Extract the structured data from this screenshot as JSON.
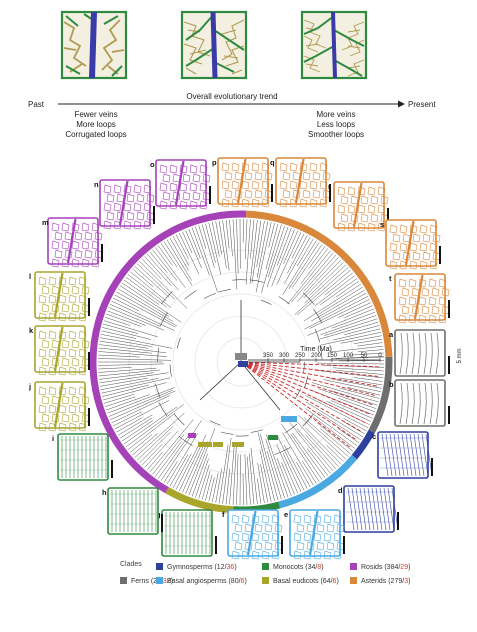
{
  "trend": {
    "past_label": "Past",
    "present_label": "Present",
    "overall_label": "Overall evolutionary trend",
    "past_traits": [
      "Fewer veins",
      "More loops",
      "Corrugated loops"
    ],
    "present_traits": [
      "More veins",
      "Less loops",
      "Smoother loops"
    ]
  },
  "time_axis": {
    "title": "Time (Ma)",
    "ticks": [
      "350",
      "300",
      "250",
      "200",
      "150",
      "100",
      "50",
      "0"
    ]
  },
  "scale_bar_label": "5 mm",
  "panels": [
    {
      "letter": "a",
      "clade": "ferns"
    },
    {
      "letter": "b",
      "clade": "ferns"
    },
    {
      "letter": "c",
      "clade": "gymnosperms"
    },
    {
      "letter": "d",
      "clade": "gymnosperms"
    },
    {
      "letter": "e",
      "clade": "basal_angiosperms"
    },
    {
      "letter": "f",
      "clade": "basal_angiosperms"
    },
    {
      "letter": "g",
      "clade": "monocots"
    },
    {
      "letter": "h",
      "clade": "monocots"
    },
    {
      "letter": "i",
      "clade": "monocots"
    },
    {
      "letter": "j",
      "clade": "basal_eudicots"
    },
    {
      "letter": "k",
      "clade": "basal_eudicots"
    },
    {
      "letter": "l",
      "clade": "basal_eudicots"
    },
    {
      "letter": "m",
      "clade": "rosids"
    },
    {
      "letter": "n",
      "clade": "rosids"
    },
    {
      "letter": "o",
      "clade": "rosids"
    },
    {
      "letter": "p",
      "clade": "asterids"
    },
    {
      "letter": "q",
      "clade": "asterids"
    },
    {
      "letter": "r",
      "clade": "asterids"
    },
    {
      "letter": "s",
      "clade": "asterids"
    },
    {
      "letter": "t",
      "clade": "asterids"
    }
  ],
  "legend": {
    "title": "Clades",
    "items": [
      {
        "key": "ferns",
        "name": "Ferns",
        "count_a": "27",
        "count_b": "32",
        "color": "#6e6e6e"
      },
      {
        "key": "gymnosperms",
        "name": "Gymnosperms",
        "count_a": "12",
        "count_b": "36",
        "color": "#2e3f9e"
      },
      {
        "key": "basal_angiosperms",
        "name": "Basal angiosperms",
        "count_a": "80",
        "count_b": "6",
        "color": "#4aa9e0"
      },
      {
        "key": "monocots",
        "name": "Monocots",
        "count_a": "34",
        "count_b": "8",
        "color": "#2f8a3f"
      },
      {
        "key": "basal_eudicots",
        "name": "Basal eudicots",
        "count_a": "64",
        "count_b": "6",
        "color": "#a9a42a"
      },
      {
        "key": "rosids",
        "name": "Rosids",
        "count_a": "384",
        "count_b": "29",
        "color": "#a542b8"
      },
      {
        "key": "asterids",
        "name": "Asterids",
        "count_a": "279",
        "count_b": "3",
        "color": "#d9873a"
      }
    ]
  },
  "colors": {
    "vein_midrib": "#3a3aa8",
    "vein_green": "#2f8a3f",
    "vein_tan": "#b09a52",
    "count_highlight": "#d23a2a",
    "tree_branch": "#333333",
    "tree_highlight": "#cc2a2a"
  }
}
